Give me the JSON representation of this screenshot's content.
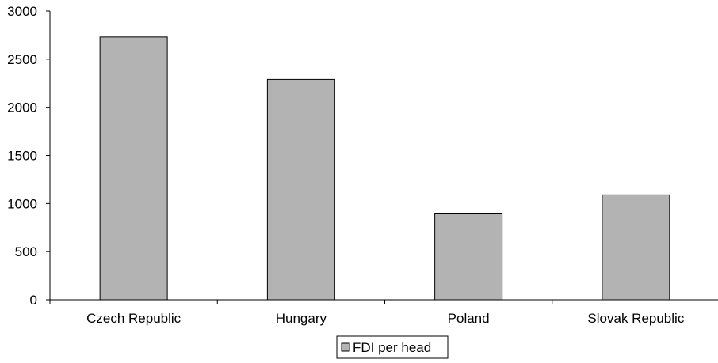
{
  "chart_data": {
    "type": "bar",
    "categories": [
      "Czech Republic",
      "Hungary",
      "Poland",
      "Slovak Republic"
    ],
    "series": [
      {
        "name": "FDI per head",
        "values": [
          2730,
          2290,
          900,
          1090
        ],
        "color": "#b3b3b3"
      }
    ],
    "ylim": [
      0,
      3000
    ],
    "yticks": [
      0,
      500,
      1000,
      1500,
      2000,
      2500,
      3000
    ],
    "grid": false,
    "legend": "bottom-center"
  }
}
